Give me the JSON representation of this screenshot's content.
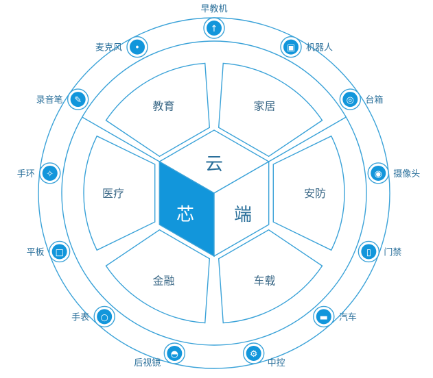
{
  "colors": {
    "line": "#3aa2d8",
    "accent": "#1296db",
    "text": "#2a6f9a",
    "segment_text": "#3d6a88",
    "white": "#ffffff"
  },
  "core": {
    "top": "云",
    "left": "芯",
    "right": "端"
  },
  "segments": [
    {
      "label": "家居"
    },
    {
      "label": "安防"
    },
    {
      "label": "车载"
    },
    {
      "label": "金融"
    },
    {
      "label": "医疗"
    },
    {
      "label": "教育"
    }
  ],
  "ring_items": [
    {
      "label": "早教机",
      "icon": "rocket-icon"
    },
    {
      "label": "机器人",
      "icon": "robot-icon"
    },
    {
      "label": "台箱",
      "icon": "tv-box-icon"
    },
    {
      "label": "摄像头",
      "icon": "camera-icon"
    },
    {
      "label": "门禁",
      "icon": "door-icon"
    },
    {
      "label": "汽车",
      "icon": "car-icon"
    },
    {
      "label": "中控",
      "icon": "gear-icon"
    },
    {
      "label": "后视镜",
      "icon": "mirror-icon"
    },
    {
      "label": "手表",
      "icon": "watch-icon"
    },
    {
      "label": "平板",
      "icon": "tablet-icon"
    },
    {
      "label": "手环",
      "icon": "band-icon"
    },
    {
      "label": "录音笔",
      "icon": "pen-icon"
    },
    {
      "label": "麦克风",
      "icon": "microphone-icon"
    }
  ]
}
